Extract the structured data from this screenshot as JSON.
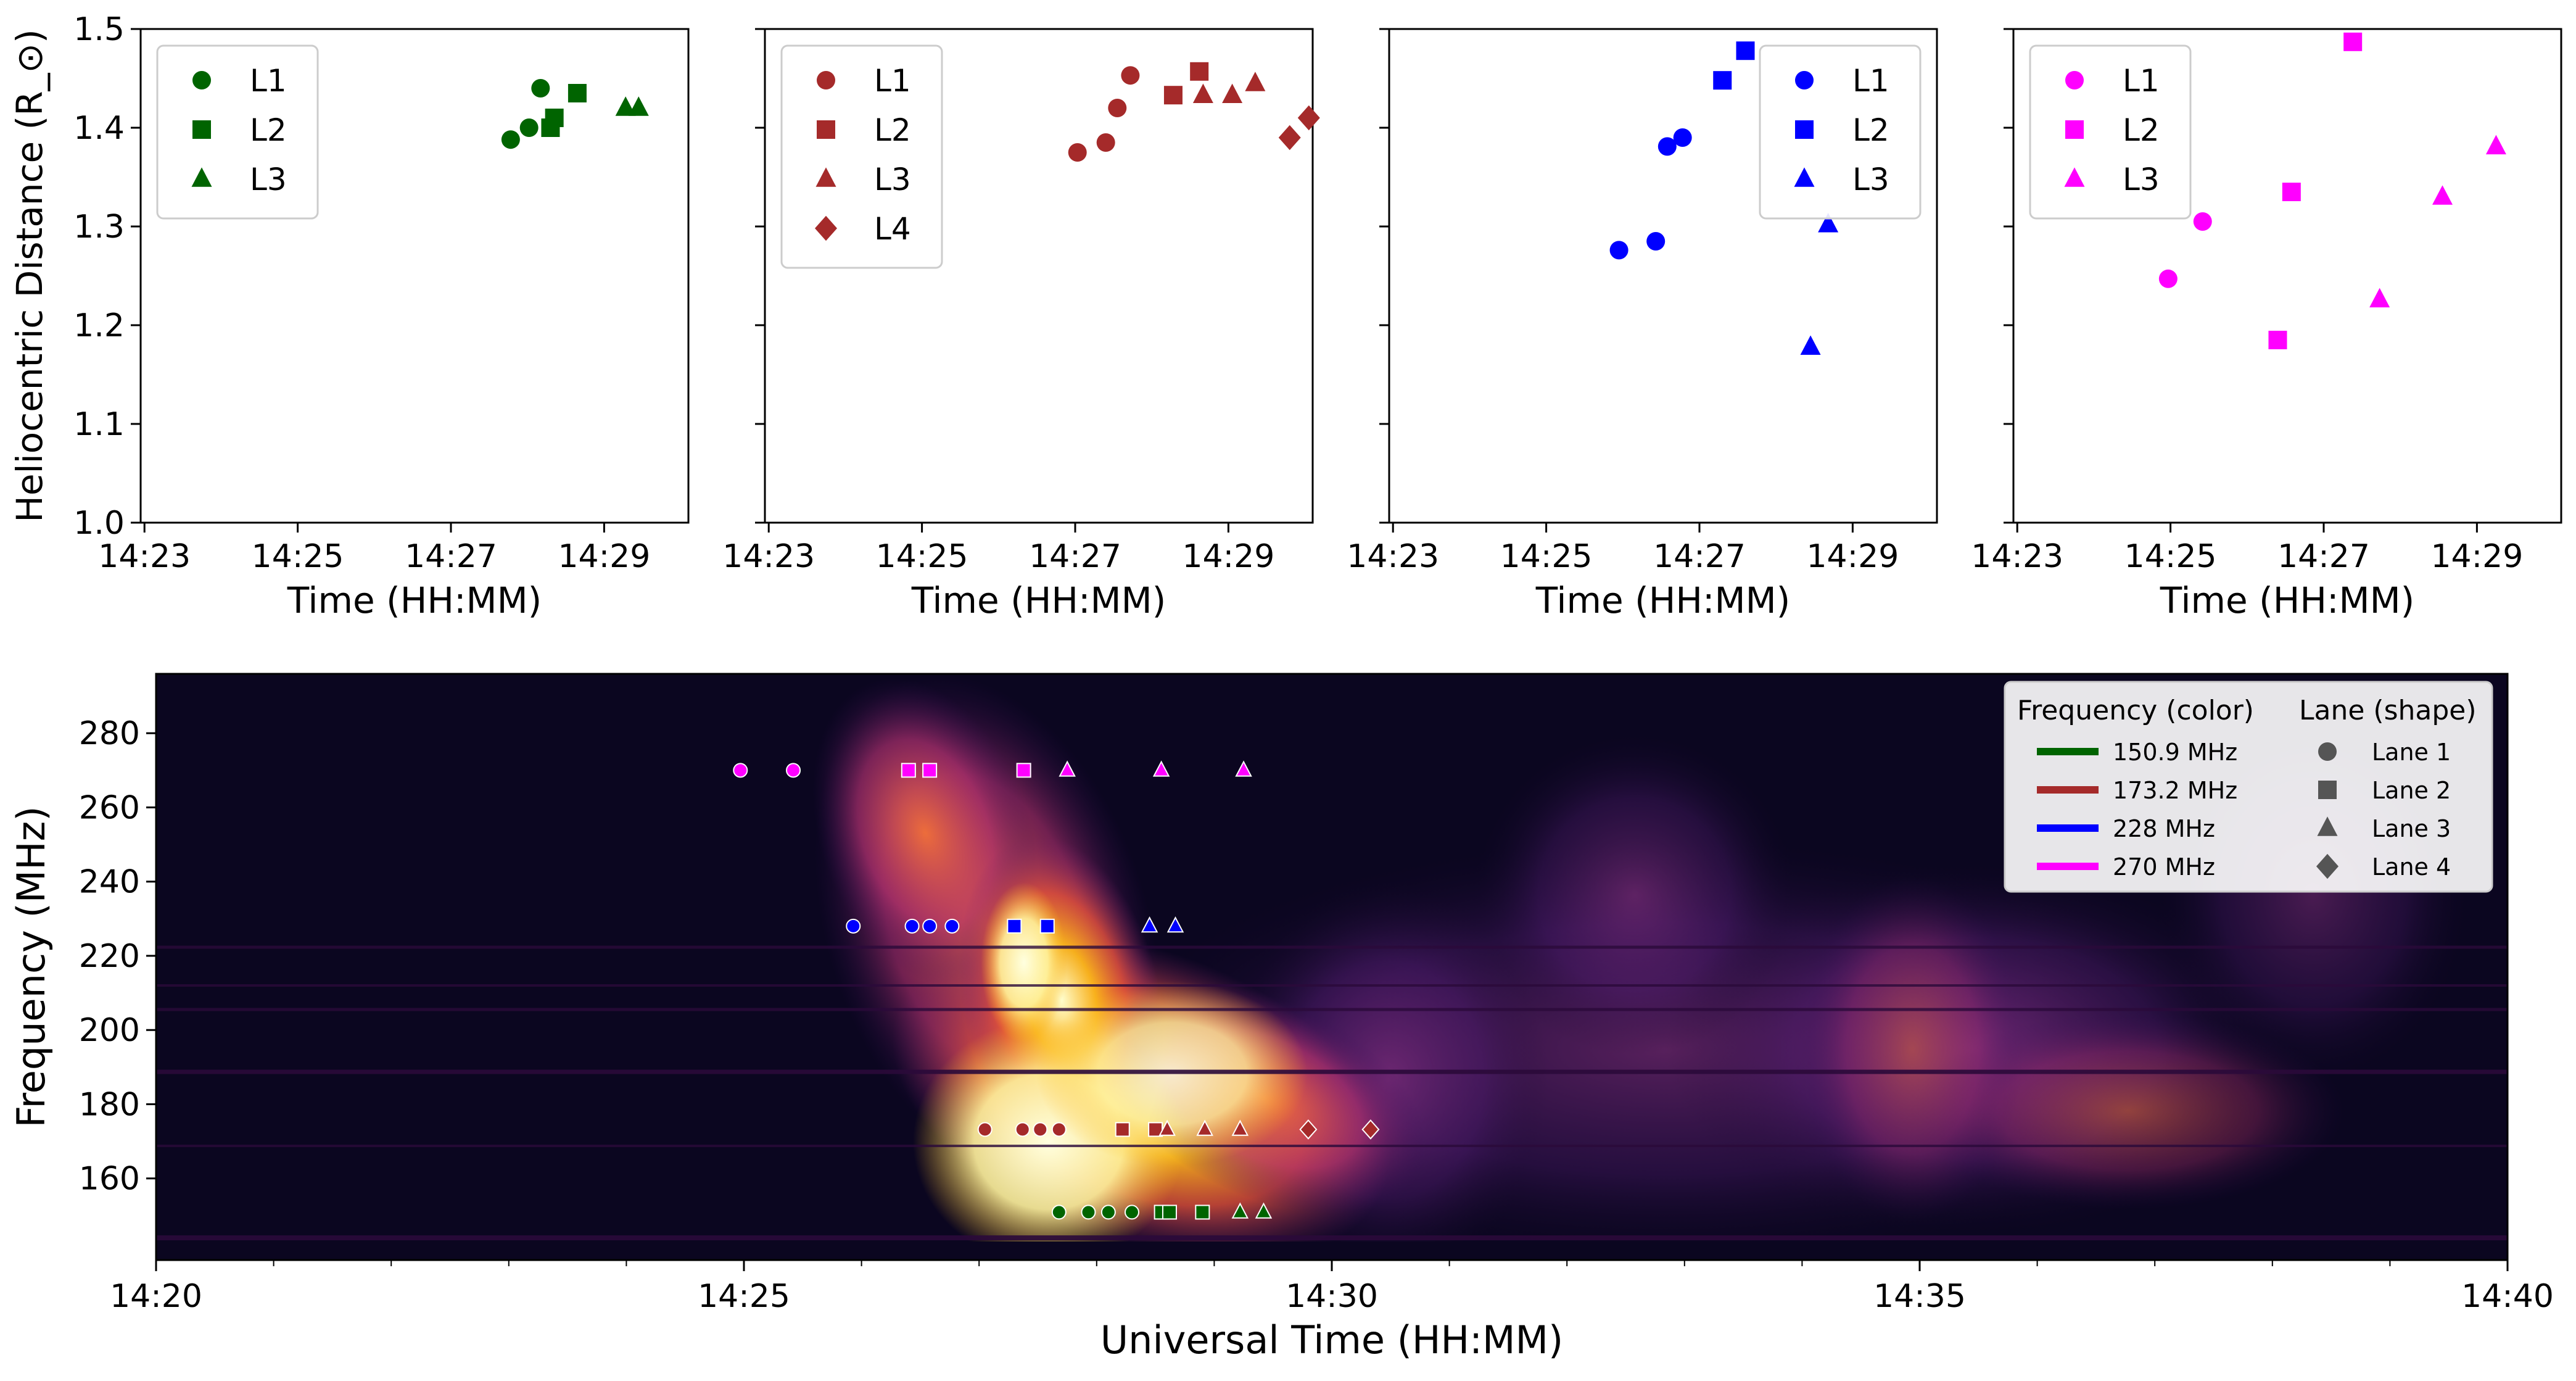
{
  "top_panels": {
    "ylabel": "Heliocentric Distance (R_⊙)",
    "xlabel": "Time (HH:MM)",
    "xticks": [
      "14:23",
      "14:25",
      "14:27",
      "14:29"
    ],
    "yticks": [
      "1.0",
      "1.1",
      "1.2",
      "1.3",
      "1.4",
      "1.5"
    ]
  },
  "bottom_panel": {
    "xlabel": "Universal Time (HH:MM)",
    "ylabel": "Frequency (MHz)",
    "xticks": [
      "14:20",
      "14:25",
      "14:30",
      "14:35",
      "14:40"
    ],
    "yticks": [
      "160",
      "180",
      "200",
      "220",
      "240",
      "260",
      "280"
    ],
    "legend": {
      "freq_title": "Frequency (color)",
      "lane_title": "Lane (shape)",
      "freq_entries": [
        {
          "label": "150.9 MHz",
          "color": "#006400"
        },
        {
          "label": "173.2 MHz",
          "color": "#a52a2a"
        },
        {
          "label": "228 MHz",
          "color": "#0000ff"
        },
        {
          "label": "270 MHz",
          "color": "#ff00ff"
        }
      ],
      "lane_entries": [
        {
          "label": "Lane 1",
          "marker": "circle"
        },
        {
          "label": "Lane 2",
          "marker": "square"
        },
        {
          "label": "Lane 3",
          "marker": "triangle"
        },
        {
          "label": "Lane 4",
          "marker": "diamond"
        }
      ]
    }
  },
  "chart_data": [
    {
      "type": "scatter",
      "color": "#006400",
      "xlim": [
        -0.05,
        7.1
      ],
      "ylim": [
        1.0,
        1.5
      ],
      "x_unit": "minutes after 14:23",
      "series": [
        {
          "name": "L1",
          "marker": "circle",
          "x": [
            4.78,
            5.02,
            5.17
          ],
          "y": [
            1.388,
            1.4,
            1.44
          ]
        },
        {
          "name": "L2",
          "marker": "square",
          "x": [
            5.3,
            5.35,
            5.65
          ],
          "y": [
            1.4,
            1.41,
            1.435
          ]
        },
        {
          "name": "L3",
          "marker": "triangle",
          "x": [
            6.28,
            6.45
          ],
          "y": [
            1.42,
            1.42
          ]
        }
      ]
    },
    {
      "type": "scatter",
      "color": "#a52a2a",
      "xlim": [
        -0.05,
        7.1
      ],
      "ylim": [
        1.0,
        1.5
      ],
      "x_unit": "minutes after 14:23",
      "series": [
        {
          "name": "L1",
          "marker": "circle",
          "x": [
            4.03,
            4.4,
            4.55,
            4.72
          ],
          "y": [
            1.375,
            1.385,
            1.42,
            1.453
          ]
        },
        {
          "name": "L2",
          "marker": "square",
          "x": [
            5.28,
            5.62
          ],
          "y": [
            1.433,
            1.457
          ]
        },
        {
          "name": "L3",
          "marker": "triangle",
          "x": [
            5.67,
            6.05,
            6.35
          ],
          "y": [
            1.433,
            1.433,
            1.445
          ]
        },
        {
          "name": "L4",
          "marker": "diamond",
          "x": [
            6.8,
            7.05
          ],
          "y": [
            1.39,
            1.41
          ]
        }
      ]
    },
    {
      "type": "scatter",
      "color": "#0000ff",
      "xlim": [
        -0.05,
        7.1
      ],
      "ylim": [
        1.0,
        1.5
      ],
      "x_unit": "minutes after 14:23",
      "series": [
        {
          "name": "L1",
          "marker": "circle",
          "x": [
            2.95,
            3.43,
            3.58,
            3.78
          ],
          "y": [
            1.276,
            1.285,
            1.381,
            1.39
          ]
        },
        {
          "name": "L2",
          "marker": "square",
          "x": [
            4.3,
            4.6
          ],
          "y": [
            1.448,
            1.478
          ]
        },
        {
          "name": "L3",
          "marker": "triangle",
          "x": [
            5.45,
            5.68
          ],
          "y": [
            1.178,
            1.302
          ]
        }
      ]
    },
    {
      "type": "scatter",
      "color": "#ff00ff",
      "xlim": [
        -0.05,
        7.1
      ],
      "ylim": [
        1.0,
        1.5
      ],
      "x_unit": "minutes after 14:23",
      "series": [
        {
          "name": "L1",
          "marker": "circle",
          "x": [
            1.97,
            2.42
          ],
          "y": [
            1.247,
            1.305
          ]
        },
        {
          "name": "L2",
          "marker": "square",
          "x": [
            3.4,
            3.58,
            4.38
          ],
          "y": [
            1.185,
            1.335,
            1.487
          ]
        },
        {
          "name": "L3",
          "marker": "triangle",
          "x": [
            4.73,
            5.55,
            6.25
          ],
          "y": [
            1.226,
            1.33,
            1.381
          ]
        }
      ]
    },
    {
      "type": "heatmap",
      "xlim": [
        "14:20",
        "14:40"
      ],
      "ylim": [
        138,
        296
      ],
      "colormap": "inferno",
      "overlay": [
        {
          "freq": 150.9,
          "color": "#006400",
          "points": [
            [
              7.68,
              "circle"
            ],
            [
              7.93,
              "circle"
            ],
            [
              8.1,
              "circle"
            ],
            [
              8.3,
              "circle"
            ],
            [
              8.55,
              "square"
            ],
            [
              8.62,
              "square"
            ],
            [
              8.9,
              "square"
            ],
            [
              9.22,
              "triangle"
            ],
            [
              9.42,
              "triangle"
            ]
          ]
        },
        {
          "freq": 173.2,
          "color": "#a52a2a",
          "points": [
            [
              7.05,
              "circle"
            ],
            [
              7.37,
              "circle"
            ],
            [
              7.52,
              "circle"
            ],
            [
              7.68,
              "circle"
            ],
            [
              8.22,
              "square"
            ],
            [
              8.5,
              "square"
            ],
            [
              8.6,
              "triangle"
            ],
            [
              8.92,
              "triangle"
            ],
            [
              9.22,
              "triangle"
            ],
            [
              9.8,
              "diamond"
            ],
            [
              10.33,
              "diamond"
            ]
          ]
        },
        {
          "freq": 228,
          "color": "#0000ff",
          "points": [
            [
              5.93,
              "circle"
            ],
            [
              6.43,
              "circle"
            ],
            [
              6.58,
              "circle"
            ],
            [
              6.77,
              "circle"
            ],
            [
              7.3,
              "square"
            ],
            [
              7.58,
              "square"
            ],
            [
              8.45,
              "triangle"
            ],
            [
              8.67,
              "triangle"
            ]
          ]
        },
        {
          "freq": 270,
          "color": "#ff00ff",
          "points": [
            [
              4.97,
              "circle"
            ],
            [
              5.42,
              "circle"
            ],
            [
              6.4,
              "square"
            ],
            [
              6.58,
              "square"
            ],
            [
              7.38,
              "square"
            ],
            [
              7.75,
              "triangle"
            ],
            [
              8.55,
              "triangle"
            ],
            [
              9.25,
              "triangle"
            ]
          ]
        }
      ]
    }
  ]
}
